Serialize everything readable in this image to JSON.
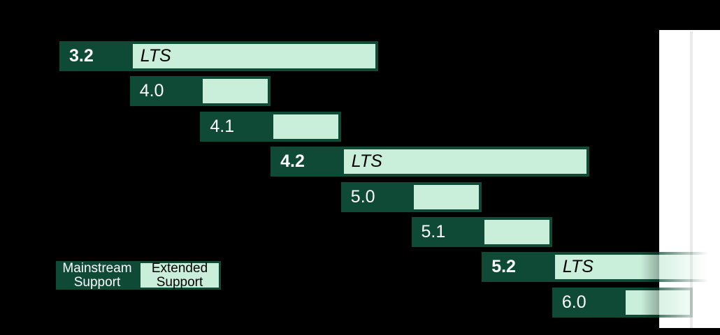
{
  "colors": {
    "background": "#000000",
    "mainstream_green": "#0e4a35",
    "extended_green": "#c9eeda",
    "mainstream_text": "#ffffff",
    "extended_text": "#000000",
    "future_panel": "#ffffff",
    "gridline": "#e9e9e9"
  },
  "chart_data": {
    "type": "gantt",
    "legend": [
      {
        "label": "Mainstream Support",
        "color": "#0e4a35"
      },
      {
        "label": "Extended Support",
        "color": "#c9eeda"
      }
    ],
    "legend_position": "bottom-left",
    "rows": [
      {
        "version": "3.2",
        "lts": true,
        "bar_label": "LTS",
        "start": 0,
        "mainstream": 1,
        "extended": 3.53
      },
      {
        "version": "4.0",
        "lts": false,
        "bar_label": "",
        "start": 1,
        "mainstream": 1,
        "extended": 1
      },
      {
        "version": "4.1",
        "lts": false,
        "bar_label": "",
        "start": 2,
        "mainstream": 1,
        "extended": 1
      },
      {
        "version": "4.2",
        "lts": true,
        "bar_label": "LTS",
        "start": 3,
        "mainstream": 1,
        "extended": 3.53
      },
      {
        "version": "5.0",
        "lts": false,
        "bar_label": "",
        "start": 4,
        "mainstream": 1,
        "extended": 1
      },
      {
        "version": "5.1",
        "lts": false,
        "bar_label": "",
        "start": 5,
        "mainstream": 1,
        "extended": 1
      },
      {
        "version": "5.2",
        "lts": true,
        "bar_label": "LTS",
        "start": 6,
        "mainstream": 1,
        "extended": 3.53,
        "fades_into_future": true
      },
      {
        "version": "6.0",
        "lts": false,
        "bar_label": "",
        "start": 7,
        "mainstream": 1,
        "extended": 1,
        "fades_into_future": true
      }
    ],
    "future_region": {
      "present": true,
      "has_gridline": true
    }
  }
}
